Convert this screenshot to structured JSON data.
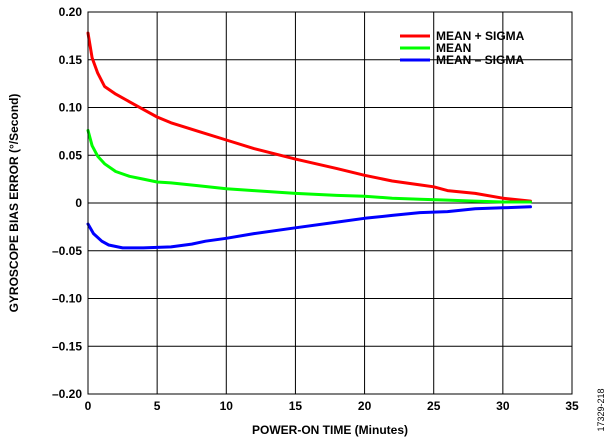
{
  "figure_id": "17329-218",
  "chart_data": {
    "type": "line",
    "title": "",
    "xlabel": "POWER-ON TIME (Minutes)",
    "ylabel": "GYROSCOPE BIAS ERROR (°/Second)",
    "xlim": [
      0,
      35
    ],
    "ylim": [
      -0.2,
      0.2
    ],
    "x_ticks": [
      0,
      5,
      10,
      15,
      20,
      25,
      30,
      35
    ],
    "x_tick_labels": [
      "0",
      "5",
      "10",
      "15",
      "20",
      "25",
      "30",
      "35"
    ],
    "y_ticks": [
      0.2,
      0.15,
      0.1,
      0.05,
      0,
      -0.05,
      -0.1,
      -0.15,
      -0.2
    ],
    "y_tick_labels": [
      "0.20",
      "0.15",
      "0.10",
      "0.05",
      "0",
      "–0.05",
      "–0.10",
      "–0.15",
      "–0.20"
    ],
    "grid": true,
    "legend_position": "top-right",
    "series": [
      {
        "name": "MEAN + SIGMA",
        "color": "#ff0000",
        "x": [
          0,
          0.3,
          0.7,
          1.2,
          2,
          3,
          4,
          5,
          6,
          8,
          10,
          12,
          15,
          18,
          20,
          22,
          24,
          25,
          26,
          28,
          30,
          32
        ],
        "y": [
          0.178,
          0.152,
          0.136,
          0.122,
          0.114,
          0.106,
          0.098,
          0.09,
          0.084,
          0.075,
          0.066,
          0.057,
          0.046,
          0.036,
          0.029,
          0.023,
          0.019,
          0.017,
          0.013,
          0.01,
          0.005,
          0.002
        ]
      },
      {
        "name": "MEAN",
        "color": "#00ff00",
        "x": [
          0,
          0.3,
          0.7,
          1.2,
          2,
          3,
          4,
          5,
          6,
          8,
          10,
          12,
          15,
          18,
          20,
          22,
          24,
          26,
          28,
          30,
          32
        ],
        "y": [
          0.076,
          0.06,
          0.049,
          0.041,
          0.033,
          0.028,
          0.025,
          0.022,
          0.021,
          0.018,
          0.015,
          0.013,
          0.01,
          0.008,
          0.007,
          0.005,
          0.004,
          0.003,
          0.002,
          0.001,
          0.001
        ]
      },
      {
        "name": "MEAN – SIGMA",
        "color": "#0000ff",
        "x": [
          0,
          0.4,
          1,
          1.5,
          2.5,
          4,
          6,
          7.5,
          8.5,
          10,
          12,
          15,
          18,
          20,
          22,
          24,
          26,
          28,
          30,
          32
        ],
        "y": [
          -0.022,
          -0.032,
          -0.04,
          -0.044,
          -0.047,
          -0.047,
          -0.046,
          -0.043,
          -0.04,
          -0.037,
          -0.032,
          -0.026,
          -0.02,
          -0.016,
          -0.013,
          -0.01,
          -0.009,
          -0.006,
          -0.005,
          -0.004
        ]
      }
    ]
  }
}
